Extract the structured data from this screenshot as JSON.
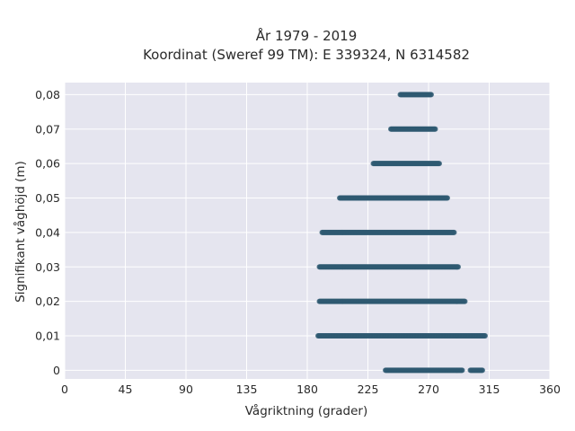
{
  "chart_data": {
    "type": "scatter",
    "title_line1": "År 1979 - 2019",
    "title_line2": "Koordinat (Sweref 99 TM): E 339324, N 6314582",
    "xlabel": "Vågriktning (grader)",
    "ylabel": "Signifikant våghöjd (m)",
    "xlim": [
      0,
      360
    ],
    "ylim": [
      -0.0025,
      0.0835
    ],
    "x_ticks": [
      0,
      45,
      90,
      135,
      180,
      225,
      270,
      315,
      360
    ],
    "x_tick_labels": [
      "0",
      "45",
      "90",
      "135",
      "180",
      "225",
      "270",
      "315",
      "360"
    ],
    "y_ticks": [
      0,
      0.01,
      0.02,
      0.03,
      0.04,
      0.05,
      0.06,
      0.07,
      0.08
    ],
    "y_tick_labels": [
      "0",
      "0,01",
      "0,02",
      "0,03",
      "0,04",
      "0,05",
      "0,06",
      "0,07",
      "0,08"
    ],
    "grid": true,
    "colors": {
      "marker": "#2f5a72",
      "plot_background": "#e5e5ef",
      "grid": "#ffffff"
    },
    "points_by_level": [
      {
        "y": 0,
        "segments": [
          [
            238,
            295
          ],
          [
            301,
            310
          ]
        ]
      },
      {
        "y": 0.01,
        "segments": [
          [
            188,
            312
          ]
        ]
      },
      {
        "y": 0.02,
        "segments": [
          [
            189,
            297
          ]
        ]
      },
      {
        "y": 0.03,
        "segments": [
          [
            189,
            292
          ]
        ]
      },
      {
        "y": 0.04,
        "segments": [
          [
            191,
            289
          ]
        ]
      },
      {
        "y": 0.05,
        "segments": [
          [
            204,
            284
          ]
        ]
      },
      {
        "y": 0.06,
        "segments": [
          [
            229,
            278
          ]
        ]
      },
      {
        "y": 0.07,
        "segments": [
          [
            242,
            275
          ]
        ]
      },
      {
        "y": 0.08,
        "segments": [
          [
            249,
            272
          ]
        ]
      }
    ]
  }
}
